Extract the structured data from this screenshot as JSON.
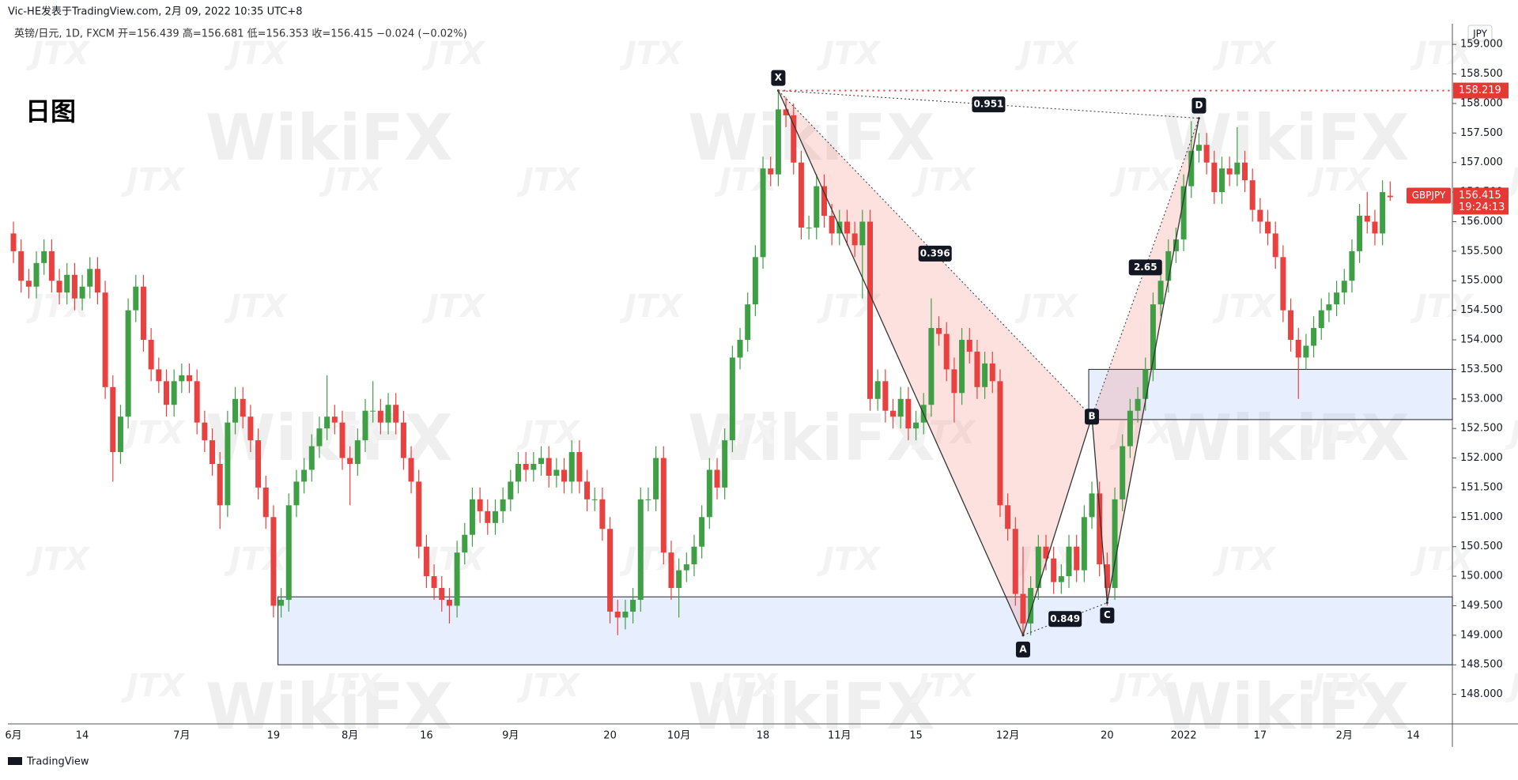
{
  "header": {
    "publisher": "Vic-HE发表于TradingView.com, 2月 09, 2022 10:35 UTC+8",
    "info": "英镑/日元, 1D, FXCM  开=156.439  高=156.681  低=156.353  收=156.415  −0.024 (−0.02%)",
    "caption": "日图",
    "currency": "JPY",
    "footer": "TradingView"
  },
  "watermarks": [
    "WikiFX",
    "JTX"
  ],
  "chart_data": {
    "type": "candlestick",
    "up_color": "#3e9f44",
    "down_color": "#e8413f",
    "ylim": [
      147.5,
      159.35
    ],
    "yticks": [
      {
        "value": 148,
        "label": "148.000"
      },
      {
        "value": 148.5,
        "label": "148.500"
      },
      {
        "value": 149,
        "label": "149.000"
      },
      {
        "value": 149.5,
        "label": "149.500"
      },
      {
        "value": 150,
        "label": "150.000"
      },
      {
        "value": 150.5,
        "label": "150.500"
      },
      {
        "value": 151,
        "label": "151.000"
      },
      {
        "value": 151.5,
        "label": "151.500"
      },
      {
        "value": 152,
        "label": "152.000"
      },
      {
        "value": 152.5,
        "label": "152.500"
      },
      {
        "value": 153,
        "label": "153.000"
      },
      {
        "value": 153.5,
        "label": "153.500"
      },
      {
        "value": 154,
        "label": "154.000"
      },
      {
        "value": 154.5,
        "label": "154.500"
      },
      {
        "value": 155,
        "label": "155.000"
      },
      {
        "value": 155.5,
        "label": "155.500"
      },
      {
        "value": 156,
        "label": "156.000"
      },
      {
        "value": 156.5,
        "label": "156.500"
      },
      {
        "value": 157,
        "label": "157.000"
      },
      {
        "value": 157.5,
        "label": "157.500"
      },
      {
        "value": 158,
        "label": "158.000"
      },
      {
        "value": 158.5,
        "label": "158.500"
      },
      {
        "value": 159,
        "label": "159.000"
      }
    ],
    "categories": [
      "6月",
      null,
      null,
      null,
      null,
      null,
      null,
      null,
      null,
      "14",
      null,
      null,
      null,
      null,
      null,
      null,
      null,
      null,
      null,
      null,
      null,
      null,
      "7月",
      null,
      null,
      null,
      null,
      null,
      null,
      null,
      null,
      null,
      null,
      null,
      "19",
      null,
      null,
      null,
      null,
      null,
      null,
      null,
      null,
      null,
      "8月",
      null,
      null,
      null,
      null,
      null,
      null,
      null,
      null,
      null,
      "16",
      null,
      null,
      null,
      null,
      null,
      null,
      null,
      null,
      null,
      null,
      "9月",
      null,
      null,
      null,
      null,
      null,
      null,
      null,
      null,
      null,
      null,
      null,
      null,
      "20",
      null,
      null,
      null,
      null,
      null,
      null,
      null,
      null,
      "10月",
      null,
      null,
      null,
      null,
      null,
      null,
      null,
      null,
      null,
      null,
      "18",
      null,
      null,
      null,
      null,
      null,
      null,
      null,
      null,
      null,
      "11月",
      null,
      null,
      null,
      null,
      null,
      null,
      null,
      null,
      null,
      "15",
      null,
      null,
      null,
      null,
      null,
      null,
      null,
      null,
      null,
      null,
      null,
      "12月",
      null,
      null,
      null,
      null,
      null,
      null,
      null,
      null,
      null,
      null,
      null,
      null,
      "20",
      null,
      null,
      null,
      null,
      null,
      null,
      null,
      null,
      null,
      "2022",
      null,
      null,
      null,
      null,
      null,
      null,
      null,
      null,
      null,
      "17",
      null,
      null,
      null,
      null,
      null,
      null,
      null,
      null,
      null,
      null,
      "2月",
      null,
      null,
      null,
      null,
      null,
      null,
      null,
      null,
      "14"
    ],
    "candles": [
      [
        155.8,
        156.0,
        155.3,
        155.5
      ],
      [
        155.5,
        155.7,
        154.8,
        155.0
      ],
      [
        155.0,
        155.2,
        154.7,
        154.9
      ],
      [
        154.9,
        155.5,
        154.7,
        155.3
      ],
      [
        155.3,
        155.7,
        155.1,
        155.5
      ],
      [
        155.5,
        155.7,
        154.8,
        155.0
      ],
      [
        155.0,
        155.2,
        154.6,
        154.8
      ],
      [
        154.8,
        155.3,
        154.6,
        155.1
      ],
      [
        155.1,
        155.3,
        154.5,
        154.7
      ],
      [
        154.7,
        155.1,
        154.5,
        154.9
      ],
      [
        154.9,
        155.4,
        154.7,
        155.2
      ],
      [
        155.2,
        155.4,
        154.6,
        154.8
      ],
      [
        154.8,
        155.0,
        153.0,
        153.2
      ],
      [
        153.2,
        153.4,
        151.6,
        152.1
      ],
      [
        152.1,
        152.9,
        151.9,
        152.7
      ],
      [
        152.7,
        154.7,
        152.5,
        154.5
      ],
      [
        154.5,
        155.1,
        154.3,
        154.9
      ],
      [
        154.9,
        155.1,
        153.8,
        154.0
      ],
      [
        154.0,
        154.2,
        153.3,
        153.5
      ],
      [
        153.5,
        153.7,
        153.1,
        153.3
      ],
      [
        153.3,
        153.5,
        152.7,
        152.9
      ],
      [
        152.9,
        153.5,
        152.7,
        153.3
      ],
      [
        153.3,
        153.6,
        153.1,
        153.4
      ],
      [
        153.4,
        153.6,
        153.1,
        153.3
      ],
      [
        153.3,
        153.5,
        152.4,
        152.6
      ],
      [
        152.6,
        152.8,
        152.1,
        152.3
      ],
      [
        152.3,
        152.5,
        151.7,
        151.9
      ],
      [
        151.9,
        152.1,
        150.8,
        151.2
      ],
      [
        151.2,
        152.8,
        151.0,
        152.6
      ],
      [
        152.6,
        153.2,
        152.4,
        153.0
      ],
      [
        153.0,
        153.2,
        152.5,
        152.7
      ],
      [
        152.7,
        152.9,
        152.1,
        152.3
      ],
      [
        152.3,
        152.5,
        151.3,
        151.5
      ],
      [
        151.5,
        151.7,
        150.8,
        151.0
      ],
      [
        151.0,
        151.2,
        149.3,
        149.5
      ],
      [
        149.5,
        149.8,
        149.3,
        149.6
      ],
      [
        149.6,
        151.4,
        149.4,
        151.2
      ],
      [
        151.2,
        151.8,
        151.0,
        151.6
      ],
      [
        151.6,
        152.0,
        151.4,
        151.8
      ],
      [
        151.8,
        152.4,
        151.6,
        152.2
      ],
      [
        152.2,
        152.7,
        152.0,
        152.5
      ],
      [
        152.5,
        153.4,
        152.3,
        152.7
      ],
      [
        152.7,
        152.9,
        152.4,
        152.6
      ],
      [
        152.6,
        152.8,
        151.8,
        152.0
      ],
      [
        152.0,
        152.2,
        151.2,
        151.9
      ],
      [
        151.9,
        152.5,
        151.7,
        152.3
      ],
      [
        152.3,
        153.0,
        152.1,
        152.8
      ],
      [
        152.8,
        153.3,
        152.6,
        152.8
      ],
      [
        152.8,
        153.0,
        152.4,
        152.6
      ],
      [
        152.6,
        153.1,
        152.4,
        152.9
      ],
      [
        152.9,
        153.1,
        152.4,
        152.6
      ],
      [
        152.6,
        152.8,
        151.8,
        152.0
      ],
      [
        152.0,
        152.2,
        151.4,
        151.6
      ],
      [
        151.6,
        151.8,
        150.3,
        150.5
      ],
      [
        150.5,
        150.7,
        149.8,
        150.0
      ],
      [
        150.0,
        150.2,
        149.6,
        149.8
      ],
      [
        149.8,
        150.0,
        149.4,
        149.6
      ],
      [
        149.6,
        149.8,
        149.2,
        149.5
      ],
      [
        149.5,
        150.6,
        149.3,
        150.4
      ],
      [
        150.4,
        150.9,
        150.2,
        150.7
      ],
      [
        150.7,
        151.5,
        150.5,
        151.3
      ],
      [
        151.3,
        151.5,
        150.9,
        151.1
      ],
      [
        151.1,
        151.3,
        150.7,
        150.9
      ],
      [
        150.9,
        151.3,
        150.7,
        151.1
      ],
      [
        151.1,
        151.5,
        150.9,
        151.3
      ],
      [
        151.3,
        151.8,
        151.1,
        151.6
      ],
      [
        151.6,
        152.1,
        151.4,
        151.9
      ],
      [
        151.9,
        152.1,
        151.6,
        151.8
      ],
      [
        151.8,
        152.1,
        151.6,
        151.9
      ],
      [
        151.9,
        152.2,
        151.7,
        152.0
      ],
      [
        152.0,
        152.2,
        151.5,
        151.7
      ],
      [
        151.7,
        152.0,
        151.5,
        151.8
      ],
      [
        151.8,
        152.0,
        151.4,
        151.6
      ],
      [
        151.6,
        152.3,
        151.4,
        152.1
      ],
      [
        152.1,
        152.3,
        151.4,
        151.6
      ],
      [
        151.6,
        151.8,
        151.1,
        151.3
      ],
      [
        151.3,
        151.5,
        151.1,
        151.3
      ],
      [
        151.3,
        151.5,
        150.6,
        150.8
      ],
      [
        150.8,
        151.0,
        149.2,
        149.4
      ],
      [
        149.4,
        149.6,
        149.0,
        149.3
      ],
      [
        149.3,
        149.6,
        149.1,
        149.4
      ],
      [
        149.4,
        149.8,
        149.2,
        149.6
      ],
      [
        149.6,
        151.5,
        149.4,
        151.3
      ],
      [
        151.3,
        151.5,
        151.1,
        151.3
      ],
      [
        151.3,
        152.2,
        151.1,
        152.0
      ],
      [
        152.0,
        152.2,
        150.2,
        150.4
      ],
      [
        150.4,
        150.6,
        149.6,
        149.8
      ],
      [
        149.8,
        150.3,
        149.3,
        150.1
      ],
      [
        150.1,
        150.4,
        149.9,
        150.2
      ],
      [
        150.2,
        150.7,
        150.0,
        150.5
      ],
      [
        150.5,
        151.2,
        150.3,
        151.0
      ],
      [
        151.0,
        152.0,
        150.8,
        151.8
      ],
      [
        151.8,
        152.0,
        151.3,
        151.5
      ],
      [
        151.5,
        152.5,
        151.3,
        152.3
      ],
      [
        152.3,
        153.9,
        152.1,
        153.7
      ],
      [
        153.7,
        154.2,
        153.5,
        154.0
      ],
      [
        154.0,
        154.8,
        153.8,
        154.6
      ],
      [
        154.6,
        155.6,
        154.4,
        155.4
      ],
      [
        155.4,
        157.1,
        155.2,
        156.9
      ],
      [
        156.9,
        157.1,
        156.6,
        156.8
      ],
      [
        156.8,
        158.2,
        156.6,
        157.9
      ],
      [
        157.9,
        158.1,
        157.6,
        157.8
      ],
      [
        157.8,
        158.0,
        156.8,
        157.0
      ],
      [
        157.0,
        157.2,
        155.7,
        155.9
      ],
      [
        155.9,
        156.1,
        155.7,
        155.9
      ],
      [
        155.9,
        156.8,
        155.7,
        156.6
      ],
      [
        156.6,
        156.8,
        155.9,
        156.1
      ],
      [
        156.1,
        156.3,
        155.6,
        155.8
      ],
      [
        155.8,
        156.2,
        155.6,
        156.0
      ],
      [
        156.0,
        156.2,
        155.6,
        155.8
      ],
      [
        155.8,
        156.0,
        155.4,
        155.6
      ],
      [
        155.6,
        156.2,
        154.7,
        156.0
      ],
      [
        156.0,
        156.2,
        152.8,
        153.0
      ],
      [
        153.0,
        153.5,
        152.8,
        153.3
      ],
      [
        153.3,
        153.5,
        152.6,
        152.8
      ],
      [
        152.8,
        153.0,
        152.5,
        152.7
      ],
      [
        152.7,
        153.2,
        152.5,
        153.0
      ],
      [
        153.0,
        153.2,
        152.3,
        152.5
      ],
      [
        152.5,
        152.8,
        152.3,
        152.6
      ],
      [
        152.6,
        153.1,
        152.4,
        152.9
      ],
      [
        152.9,
        154.7,
        152.7,
        154.2
      ],
      [
        154.2,
        154.4,
        153.9,
        154.1
      ],
      [
        154.1,
        154.3,
        153.3,
        153.5
      ],
      [
        153.5,
        153.7,
        152.6,
        153.1
      ],
      [
        153.1,
        154.2,
        152.9,
        154.0
      ],
      [
        154.0,
        154.2,
        153.6,
        153.8
      ],
      [
        153.8,
        154.0,
        153.0,
        153.2
      ],
      [
        153.2,
        153.8,
        153.0,
        153.6
      ],
      [
        153.6,
        153.8,
        153.1,
        153.3
      ],
      [
        153.3,
        153.5,
        151.0,
        151.2
      ],
      [
        151.2,
        151.4,
        150.6,
        150.8
      ],
      [
        150.8,
        151.0,
        149.5,
        149.7
      ],
      [
        149.7,
        150.5,
        149.0,
        149.2
      ],
      [
        149.2,
        150.0,
        149.0,
        149.8
      ],
      [
        149.8,
        150.7,
        149.6,
        150.5
      ],
      [
        150.5,
        150.7,
        150.1,
        150.3
      ],
      [
        150.3,
        150.5,
        149.7,
        149.9
      ],
      [
        149.9,
        150.2,
        149.7,
        150.0
      ],
      [
        150.0,
        150.7,
        149.8,
        150.5
      ],
      [
        150.5,
        150.7,
        149.9,
        150.1
      ],
      [
        150.1,
        151.2,
        149.9,
        151.0
      ],
      [
        151.0,
        151.6,
        150.8,
        151.4
      ],
      [
        151.4,
        151.6,
        150.0,
        150.2
      ],
      [
        150.2,
        150.4,
        149.5,
        149.8
      ],
      [
        149.8,
        151.5,
        149.6,
        151.3
      ],
      [
        151.3,
        152.4,
        151.1,
        152.2
      ],
      [
        152.2,
        153.0,
        152.0,
        152.8
      ],
      [
        152.8,
        153.2,
        152.6,
        153.0
      ],
      [
        153.0,
        153.7,
        152.8,
        153.5
      ],
      [
        153.5,
        154.8,
        153.3,
        154.6
      ],
      [
        154.6,
        155.2,
        154.4,
        155.0
      ],
      [
        155.0,
        155.7,
        154.8,
        155.5
      ],
      [
        155.5,
        155.9,
        155.3,
        155.7
      ],
      [
        155.7,
        156.8,
        155.5,
        156.6
      ],
      [
        156.6,
        157.7,
        156.4,
        157.2
      ],
      [
        157.2,
        157.5,
        157.0,
        157.3
      ],
      [
        157.3,
        157.5,
        156.8,
        157.0
      ],
      [
        157.0,
        157.2,
        156.3,
        156.5
      ],
      [
        156.5,
        157.1,
        156.3,
        156.9
      ],
      [
        156.9,
        157.1,
        156.6,
        156.8
      ],
      [
        156.8,
        157.6,
        156.6,
        157.0
      ],
      [
        157.0,
        157.2,
        156.5,
        156.7
      ],
      [
        156.7,
        156.9,
        156.0,
        156.2
      ],
      [
        156.2,
        156.4,
        155.8,
        156.0
      ],
      [
        156.0,
        156.2,
        155.6,
        155.8
      ],
      [
        155.8,
        156.0,
        155.2,
        155.4
      ],
      [
        155.4,
        155.6,
        154.3,
        154.5
      ],
      [
        154.5,
        154.7,
        153.8,
        154.0
      ],
      [
        154.0,
        154.2,
        153.0,
        153.7
      ],
      [
        153.7,
        154.1,
        153.5,
        153.9
      ],
      [
        153.9,
        154.4,
        153.7,
        154.2
      ],
      [
        154.2,
        154.7,
        154.0,
        154.5
      ],
      [
        154.5,
        154.8,
        154.3,
        154.6
      ],
      [
        154.6,
        155.0,
        154.4,
        154.8
      ],
      [
        154.8,
        155.2,
        154.6,
        155.0
      ],
      [
        155.0,
        155.7,
        154.8,
        155.5
      ],
      [
        155.5,
        156.3,
        155.3,
        156.1
      ],
      [
        156.1,
        156.5,
        155.8,
        156.0
      ],
      [
        156.0,
        156.2,
        155.6,
        155.8
      ],
      [
        155.8,
        156.7,
        155.6,
        156.5
      ],
      [
        156.439,
        156.681,
        156.353,
        156.415
      ],
      null,
      null,
      null
    ],
    "zones": [
      {
        "start": 35,
        "low": 148.5,
        "high": 149.65
      },
      {
        "start": 141,
        "low": 152.65,
        "high": 153.5
      }
    ],
    "pattern": {
      "points": [
        {
          "label": "X",
          "index": 100,
          "price": 158.219
        },
        {
          "label": "A",
          "index": 132,
          "price": 149.0
        },
        {
          "label": "B",
          "index": 141,
          "price": 152.7
        },
        {
          "label": "C",
          "index": 143,
          "price": 149.55
        },
        {
          "label": "D",
          "index": 155,
          "price": 157.75
        }
      ],
      "ratios": [
        "0.951",
        "0.396",
        "2.65",
        "0.849"
      ]
    },
    "level": {
      "value": 158.219,
      "label": "158.219"
    },
    "last_price": {
      "value": 156.415,
      "label": "156.415"
    },
    "symbol": "GBPJPY",
    "countdown": "19:24:13"
  }
}
